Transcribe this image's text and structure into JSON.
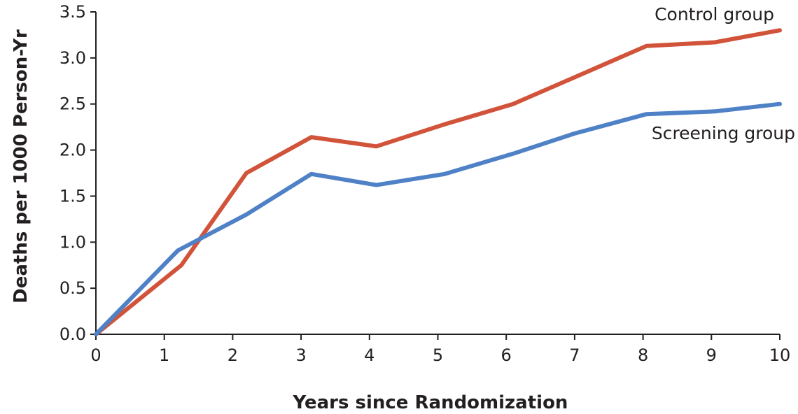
{
  "chart_data": {
    "type": "line",
    "xlabel": "Years since Randomization",
    "ylabel": "Deaths per 1000 Person-Yr",
    "xlim": [
      0,
      10
    ],
    "ylim": [
      0.0,
      3.5
    ],
    "x_ticks": [
      "0",
      "1",
      "2",
      "3",
      "4",
      "5",
      "6",
      "7",
      "8",
      "9",
      "10"
    ],
    "y_ticks": [
      "0.0",
      "0.5",
      "1.0",
      "1.5",
      "2.0",
      "2.5",
      "3.0",
      "3.5"
    ],
    "grid": false,
    "legend": "inline labels at line ends",
    "series": [
      {
        "name": "Control group",
        "color": "#d1543a",
        "x": [
          0,
          1.25,
          2.2,
          3.15,
          4.1,
          5.1,
          6.1,
          7.0,
          8.05,
          9.05,
          10.0
        ],
        "y": [
          0.0,
          0.75,
          1.75,
          2.14,
          2.04,
          2.28,
          2.5,
          2.79,
          3.13,
          3.17,
          3.3
        ]
      },
      {
        "name": "Screening group",
        "color": "#4f81c7",
        "x": [
          0,
          1.2,
          2.2,
          3.15,
          4.1,
          5.1,
          6.1,
          7.0,
          8.05,
          9.05,
          10.0
        ],
        "y": [
          0.0,
          0.91,
          1.3,
          1.74,
          1.62,
          1.74,
          1.96,
          2.18,
          2.39,
          2.42,
          2.5
        ]
      }
    ]
  }
}
